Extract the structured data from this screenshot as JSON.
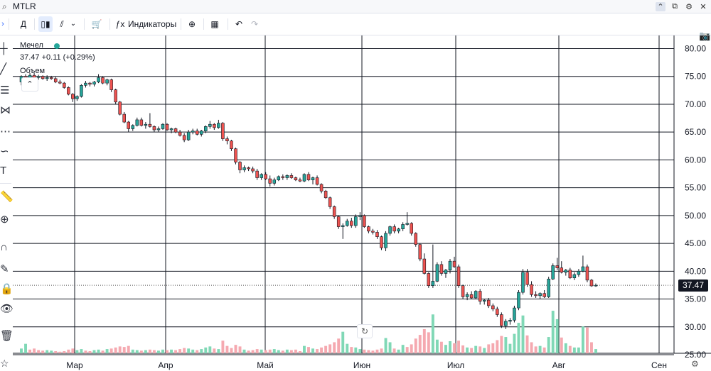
{
  "header": {
    "symbol": "MTLR",
    "search_icon": "search-icon"
  },
  "window": {
    "buttons": [
      "^",
      "⧉",
      "⚙",
      "✕"
    ]
  },
  "toolbar": {
    "interval": "Д",
    "indicators_label": "Индикаторы"
  },
  "legend": {
    "name": "Мечел",
    "price": "37.47",
    "change": "+0.11 (+0.29%)",
    "volume_label": "Объем",
    "status_color": "#26a69a"
  },
  "last_price_label": "37.47",
  "colors": {
    "up": "#26a69a",
    "down": "#ef5350",
    "vol_up": "#80d8b6",
    "vol_down": "#f5a9b0",
    "grid": "#131722"
  },
  "chart_data": {
    "type": "candlestick",
    "x_labels": [
      "Мар",
      "Апр",
      "Май",
      "Июн",
      "Июл",
      "Авг",
      "Сен"
    ],
    "y_ticks": [
      "80.00",
      "75.00",
      "70.00",
      "65.00",
      "60.00",
      "55.00",
      "50.00",
      "45.00",
      "40.00",
      "35.00",
      "30.00",
      "25.00"
    ],
    "ylim": [
      25,
      80
    ],
    "last_price": 37.47,
    "candles": [
      [
        74.0,
        75.2,
        73.4,
        75.0
      ],
      [
        75.0,
        75.4,
        74.2,
        74.4
      ],
      [
        74.4,
        75.6,
        74.0,
        75.2
      ],
      [
        75.2,
        75.6,
        74.6,
        74.8
      ],
      [
        74.8,
        75.3,
        74.4,
        75.0
      ],
      [
        75.0,
        75.2,
        74.4,
        74.6
      ],
      [
        74.6,
        75.2,
        74.2,
        74.8
      ],
      [
        74.8,
        75.1,
        74.4,
        74.6
      ],
      [
        74.6,
        74.9,
        73.8,
        74.0
      ],
      [
        74.0,
        74.4,
        73.6,
        73.8
      ],
      [
        73.8,
        74.0,
        72.8,
        73.0
      ],
      [
        73.0,
        73.2,
        71.6,
        71.8
      ],
      [
        71.8,
        72.0,
        70.4,
        71.0
      ],
      [
        71.0,
        71.6,
        70.6,
        71.4
      ],
      [
        71.4,
        73.6,
        71.2,
        73.4
      ],
      [
        73.4,
        74.2,
        73.0,
        73.8
      ],
      [
        73.8,
        74.0,
        73.2,
        73.6
      ],
      [
        73.6,
        74.2,
        73.2,
        74.0
      ],
      [
        74.0,
        75.4,
        73.8,
        74.8
      ],
      [
        74.8,
        75.0,
        73.6,
        73.8
      ],
      [
        73.8,
        74.6,
        73.4,
        74.4
      ],
      [
        74.4,
        74.6,
        72.2,
        72.6
      ],
      [
        72.6,
        72.8,
        70.0,
        70.4
      ],
      [
        70.4,
        70.6,
        68.0,
        68.2
      ],
      [
        68.2,
        68.6,
        66.6,
        66.8
      ],
      [
        66.8,
        67.0,
        65.0,
        65.6
      ],
      [
        65.6,
        66.4,
        65.2,
        66.2
      ],
      [
        66.2,
        67.6,
        66.0,
        67.2
      ],
      [
        67.2,
        67.6,
        66.0,
        66.2
      ],
      [
        66.2,
        66.8,
        65.6,
        66.4
      ],
      [
        66.4,
        68.4,
        65.8,
        66.0
      ],
      [
        66.0,
        66.2,
        65.0,
        65.4
      ],
      [
        65.4,
        66.0,
        65.0,
        65.6
      ],
      [
        65.6,
        66.6,
        65.4,
        66.4
      ],
      [
        66.4,
        66.6,
        65.2,
        65.4
      ],
      [
        65.4,
        65.8,
        64.8,
        65.6
      ],
      [
        65.6,
        65.8,
        64.8,
        65.0
      ],
      [
        65.0,
        65.4,
        64.2,
        64.4
      ],
      [
        64.4,
        64.8,
        63.2,
        63.6
      ],
      [
        63.6,
        65.4,
        63.4,
        65.0
      ],
      [
        65.0,
        65.6,
        64.6,
        65.2
      ],
      [
        65.2,
        65.6,
        64.4,
        64.6
      ],
      [
        64.6,
        65.4,
        64.2,
        65.2
      ],
      [
        65.2,
        66.2,
        64.8,
        66.0
      ],
      [
        66.0,
        67.0,
        65.6,
        66.4
      ],
      [
        66.4,
        66.6,
        65.4,
        65.8
      ],
      [
        65.8,
        67.2,
        65.6,
        66.6
      ],
      [
        66.6,
        66.8,
        63.4,
        63.8
      ],
      [
        63.8,
        64.2,
        62.8,
        63.4
      ],
      [
        63.4,
        63.6,
        61.6,
        62.0
      ],
      [
        62.0,
        62.2,
        59.2,
        59.6
      ],
      [
        59.6,
        59.8,
        57.6,
        58.2
      ],
      [
        58.2,
        59.0,
        57.8,
        58.6
      ],
      [
        58.6,
        58.8,
        58.0,
        58.4
      ],
      [
        58.4,
        58.8,
        57.6,
        58.0
      ],
      [
        58.0,
        58.4,
        56.4,
        56.8
      ],
      [
        56.8,
        57.6,
        56.4,
        57.4
      ],
      [
        57.4,
        57.8,
        56.4,
        56.6
      ],
      [
        56.6,
        57.2,
        55.2,
        55.8
      ],
      [
        55.8,
        56.8,
        55.4,
        56.4
      ],
      [
        56.4,
        57.2,
        56.2,
        57.0
      ],
      [
        57.0,
        57.4,
        56.4,
        56.8
      ],
      [
        56.8,
        57.4,
        56.4,
        57.2
      ],
      [
        57.2,
        57.6,
        56.6,
        56.8
      ],
      [
        56.8,
        57.0,
        56.2,
        56.4
      ],
      [
        56.4,
        56.8,
        56.0,
        56.2
      ],
      [
        56.2,
        57.6,
        56.0,
        57.4
      ],
      [
        57.4,
        57.8,
        56.2,
        56.4
      ],
      [
        56.4,
        57.0,
        55.6,
        56.8
      ],
      [
        56.8,
        57.2,
        55.4,
        55.6
      ],
      [
        55.6,
        55.8,
        54.0,
        54.4
      ],
      [
        54.4,
        54.6,
        53.0,
        53.2
      ],
      [
        53.2,
        53.4,
        51.2,
        51.6
      ],
      [
        51.6,
        51.8,
        49.4,
        49.8
      ],
      [
        49.8,
        50.0,
        47.6,
        48.0
      ],
      [
        48.0,
        48.6,
        45.8,
        48.2
      ],
      [
        48.2,
        49.4,
        48.0,
        49.0
      ],
      [
        49.0,
        49.6,
        47.8,
        48.2
      ],
      [
        48.2,
        50.2,
        47.8,
        49.8
      ],
      [
        49.8,
        50.6,
        49.2,
        50.0
      ],
      [
        50.0,
        50.2,
        47.8,
        48.0
      ],
      [
        48.0,
        48.2,
        46.8,
        47.2
      ],
      [
        47.2,
        47.6,
        46.6,
        47.0
      ],
      [
        47.0,
        47.4,
        45.8,
        46.2
      ],
      [
        46.2,
        46.4,
        43.8,
        44.2
      ],
      [
        44.2,
        47.2,
        43.6,
        46.8
      ],
      [
        46.8,
        48.2,
        46.4,
        48.0
      ],
      [
        48.0,
        48.4,
        46.8,
        47.2
      ],
      [
        47.2,
        47.8,
        46.8,
        47.6
      ],
      [
        47.6,
        48.8,
        47.2,
        48.4
      ],
      [
        48.4,
        50.6,
        48.2,
        48.6
      ],
      [
        48.6,
        48.8,
        46.4,
        46.8
      ],
      [
        46.8,
        47.0,
        44.4,
        44.8
      ],
      [
        44.8,
        45.0,
        41.8,
        42.2
      ],
      [
        42.2,
        43.2,
        39.4,
        39.6
      ],
      [
        39.6,
        39.8,
        37.0,
        37.4
      ],
      [
        37.4,
        44.8,
        37.0,
        38.2
      ],
      [
        38.2,
        41.6,
        38.0,
        41.2
      ],
      [
        41.2,
        41.8,
        39.2,
        39.6
      ],
      [
        39.6,
        40.4,
        38.8,
        40.2
      ],
      [
        40.2,
        42.2,
        39.6,
        41.8
      ],
      [
        41.8,
        42.6,
        40.6,
        40.8
      ],
      [
        40.8,
        41.2,
        37.0,
        37.4
      ],
      [
        37.4,
        37.6,
        35.0,
        35.4
      ],
      [
        35.4,
        36.2,
        34.8,
        35.8
      ],
      [
        35.8,
        36.4,
        35.0,
        35.2
      ],
      [
        35.2,
        36.6,
        35.0,
        36.4
      ],
      [
        36.4,
        36.8,
        34.0,
        34.6
      ],
      [
        34.6,
        35.0,
        34.0,
        34.8
      ],
      [
        34.8,
        35.2,
        33.4,
        33.8
      ],
      [
        33.8,
        34.2,
        32.8,
        33.2
      ],
      [
        33.2,
        33.6,
        31.8,
        32.2
      ],
      [
        32.2,
        32.6,
        29.8,
        30.2
      ],
      [
        30.2,
        31.4,
        29.6,
        31.0
      ],
      [
        31.0,
        31.6,
        30.4,
        31.2
      ],
      [
        31.2,
        33.8,
        30.8,
        33.4
      ],
      [
        33.4,
        36.6,
        33.0,
        36.2
      ],
      [
        36.2,
        40.4,
        35.8,
        39.8
      ],
      [
        39.8,
        40.4,
        37.2,
        37.6
      ],
      [
        37.6,
        38.2,
        35.4,
        35.8
      ],
      [
        35.8,
        36.4,
        35.2,
        35.6
      ],
      [
        35.6,
        36.2,
        35.0,
        36.0
      ],
      [
        36.0,
        36.6,
        35.2,
        35.4
      ],
      [
        35.4,
        39.0,
        35.2,
        38.6
      ],
      [
        38.6,
        41.4,
        38.4,
        41.0
      ],
      [
        41.0,
        42.4,
        40.2,
        40.6
      ],
      [
        40.6,
        41.8,
        39.6,
        39.8
      ],
      [
        39.8,
        40.4,
        39.2,
        40.2
      ],
      [
        40.2,
        40.6,
        38.6,
        38.8
      ],
      [
        38.8,
        39.8,
        38.4,
        39.4
      ],
      [
        39.4,
        40.4,
        39.0,
        40.0
      ],
      [
        40.0,
        42.8,
        39.8,
        40.8
      ],
      [
        40.8,
        41.2,
        38.0,
        38.4
      ],
      [
        38.4,
        38.6,
        37.2,
        37.36
      ],
      [
        37.36,
        37.8,
        37.2,
        37.47
      ]
    ],
    "volume": [
      [
        0,
        1.8
      ],
      [
        0,
        3.6
      ],
      [
        1,
        1.4
      ],
      [
        1,
        1.8
      ],
      [
        1,
        1.2
      ],
      [
        1,
        1.0
      ],
      [
        0,
        1.2
      ],
      [
        0,
        1.0
      ],
      [
        1,
        0.8
      ],
      [
        1,
        0.6
      ],
      [
        1,
        0.8
      ],
      [
        1,
        1.4
      ],
      [
        1,
        1.8
      ],
      [
        0,
        1.2
      ],
      [
        0,
        1.6
      ],
      [
        1,
        1.0
      ],
      [
        1,
        0.8
      ],
      [
        0,
        1.2
      ],
      [
        0,
        1.4
      ],
      [
        1,
        1.0
      ],
      [
        0,
        1.6
      ],
      [
        1,
        1.8
      ],
      [
        1,
        2.2
      ],
      [
        1,
        2.6
      ],
      [
        1,
        2.4
      ],
      [
        1,
        2.8
      ],
      [
        0,
        1.4
      ],
      [
        0,
        1.2
      ],
      [
        1,
        1.0
      ],
      [
        0,
        1.2
      ],
      [
        1,
        1.4
      ],
      [
        1,
        1.2
      ],
      [
        0,
        1.0
      ],
      [
        0,
        1.4
      ],
      [
        1,
        1.2
      ],
      [
        0,
        1.4
      ],
      [
        1,
        1.2
      ],
      [
        1,
        1.6
      ],
      [
        1,
        2.0
      ],
      [
        0,
        1.8
      ],
      [
        0,
        1.4
      ],
      [
        1,
        1.2
      ],
      [
        0,
        1.6
      ],
      [
        0,
        2.2
      ],
      [
        0,
        2.6
      ],
      [
        1,
        1.8
      ],
      [
        0,
        1.6
      ],
      [
        1,
        4.8
      ],
      [
        1,
        2.8
      ],
      [
        1,
        2.0
      ],
      [
        1,
        3.2
      ],
      [
        1,
        2.6
      ],
      [
        0,
        1.4
      ],
      [
        1,
        1.0
      ],
      [
        1,
        1.2
      ],
      [
        1,
        1.6
      ],
      [
        0,
        1.4
      ],
      [
        1,
        1.2
      ],
      [
        1,
        1.4
      ],
      [
        0,
        1.6
      ],
      [
        0,
        1.2
      ],
      [
        1,
        1.0
      ],
      [
        0,
        1.4
      ],
      [
        1,
        1.2
      ],
      [
        1,
        1.4
      ],
      [
        1,
        0.8
      ],
      [
        0,
        2.8
      ],
      [
        1,
        2.4
      ],
      [
        0,
        1.8
      ],
      [
        1,
        1.6
      ],
      [
        1,
        2.2
      ],
      [
        1,
        2.8
      ],
      [
        1,
        3.4
      ],
      [
        1,
        4.2
      ],
      [
        1,
        5.6
      ],
      [
        0,
        8.2
      ],
      [
        0,
        3.6
      ],
      [
        1,
        2.4
      ],
      [
        0,
        2.2
      ],
      [
        0,
        1.6
      ],
      [
        1,
        1.4
      ],
      [
        1,
        1.2
      ],
      [
        1,
        1.0
      ],
      [
        1,
        1.4
      ],
      [
        1,
        1.8
      ],
      [
        0,
        5.8
      ],
      [
        0,
        4.2
      ],
      [
        1,
        1.8
      ],
      [
        0,
        1.4
      ],
      [
        0,
        3.2
      ],
      [
        1,
        2.4
      ],
      [
        1,
        3.4
      ],
      [
        1,
        5.6
      ],
      [
        1,
        7.0
      ],
      [
        1,
        9.2
      ],
      [
        1,
        8.0
      ],
      [
        0,
        14.8
      ],
      [
        0,
        5.2
      ],
      [
        1,
        4.4
      ],
      [
        0,
        3.2
      ],
      [
        0,
        4.6
      ],
      [
        1,
        3.8
      ],
      [
        1,
        4.8
      ],
      [
        1,
        3.0
      ],
      [
        0,
        2.2
      ],
      [
        1,
        2.0
      ],
      [
        0,
        2.8
      ],
      [
        1,
        2.6
      ],
      [
        0,
        2.0
      ],
      [
        1,
        3.4
      ],
      [
        1,
        3.8
      ],
      [
        1,
        5.0
      ],
      [
        1,
        6.6
      ],
      [
        0,
        6.2
      ],
      [
        0,
        3.6
      ],
      [
        0,
        7.4
      ],
      [
        0,
        11.6
      ],
      [
        0,
        14.4
      ],
      [
        1,
        6.8
      ],
      [
        1,
        4.2
      ],
      [
        1,
        2.6
      ],
      [
        0,
        2.8
      ],
      [
        1,
        2.2
      ],
      [
        0,
        6.2
      ],
      [
        0,
        16.2
      ],
      [
        0,
        13.0
      ],
      [
        1,
        6.0
      ],
      [
        0,
        3.8
      ],
      [
        1,
        2.8
      ],
      [
        0,
        2.2
      ],
      [
        0,
        2.2
      ],
      [
        0,
        10.2
      ],
      [
        1,
        9.8
      ],
      [
        1,
        4.2
      ],
      [
        0,
        1.6
      ]
    ]
  }
}
